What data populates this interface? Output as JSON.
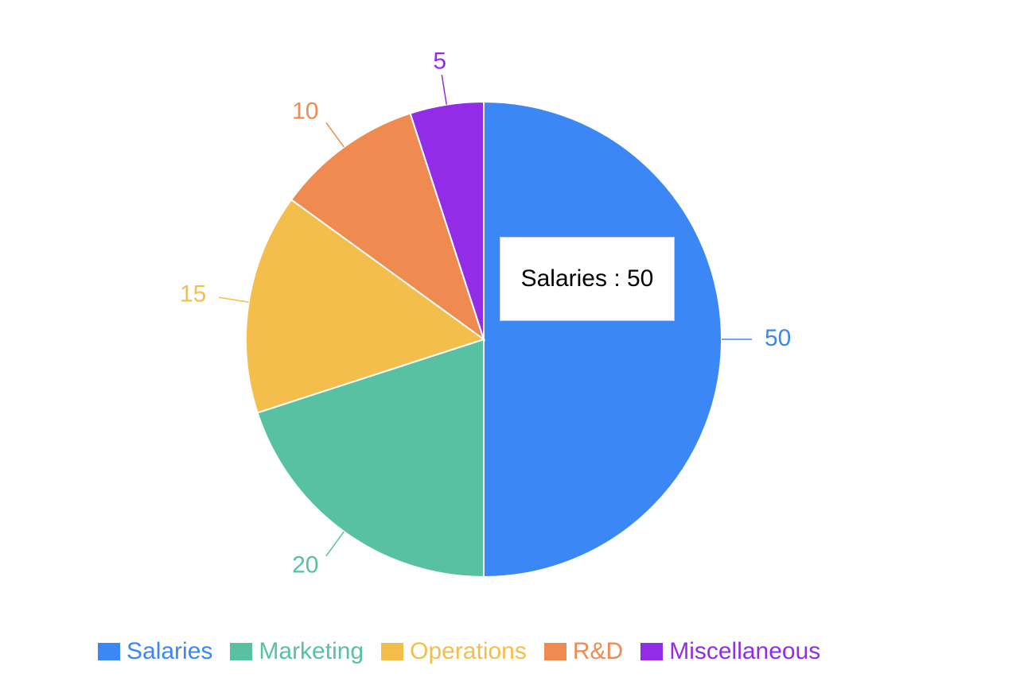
{
  "chart_data": {
    "type": "pie",
    "title": "",
    "legend_position": "bottom",
    "categories": [
      "Salaries",
      "Marketing",
      "Operations",
      "R&D",
      "Miscellaneous"
    ],
    "values": [
      50,
      20,
      15,
      10,
      5
    ],
    "colors": [
      "#3b87f5",
      "#58c1a2",
      "#f4be4c",
      "#ef8a50",
      "#922ce6"
    ],
    "data_labels": [
      "50",
      "20",
      "15",
      "10",
      "5"
    ]
  },
  "tooltip": {
    "text": "Salaries : 50"
  },
  "legend": {
    "items": [
      {
        "label": "Salaries",
        "color": "#3b87f5"
      },
      {
        "label": "Marketing",
        "color": "#58c1a2"
      },
      {
        "label": "Operations",
        "color": "#f4be4c"
      },
      {
        "label": "R&D",
        "color": "#ef8a50"
      },
      {
        "label": "Miscellaneous",
        "color": "#922ce6"
      }
    ]
  }
}
